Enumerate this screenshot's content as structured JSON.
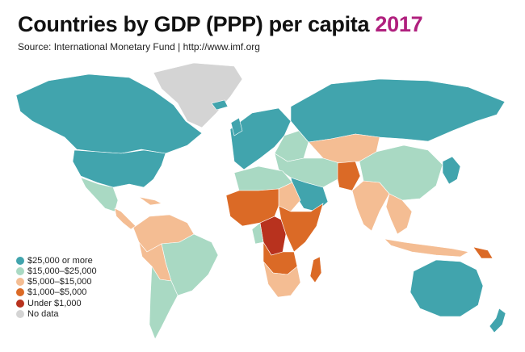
{
  "header": {
    "title": "Countries by GDP (PPP) per capita",
    "year": "2017",
    "source": "Source: International Monetary Fund | http://www.imf.org"
  },
  "colors": {
    "title_accent": "#b0207e",
    "ocean": "#ffffff",
    "border": "#ffffff"
  },
  "legend": [
    {
      "label": "$25,000 or more",
      "color": "#41a4ad"
    },
    {
      "label": "$15,000–$25,000",
      "color": "#a9d9c3"
    },
    {
      "label": "$5,000–$15,000",
      "color": "#f4bd93"
    },
    {
      "label": "$1,000–$5,000",
      "color": "#db6a26"
    },
    {
      "label": "Under $1,000",
      "color": "#b8321e"
    },
    {
      "label": "No data",
      "color": "#d4d4d4"
    }
  ]
}
